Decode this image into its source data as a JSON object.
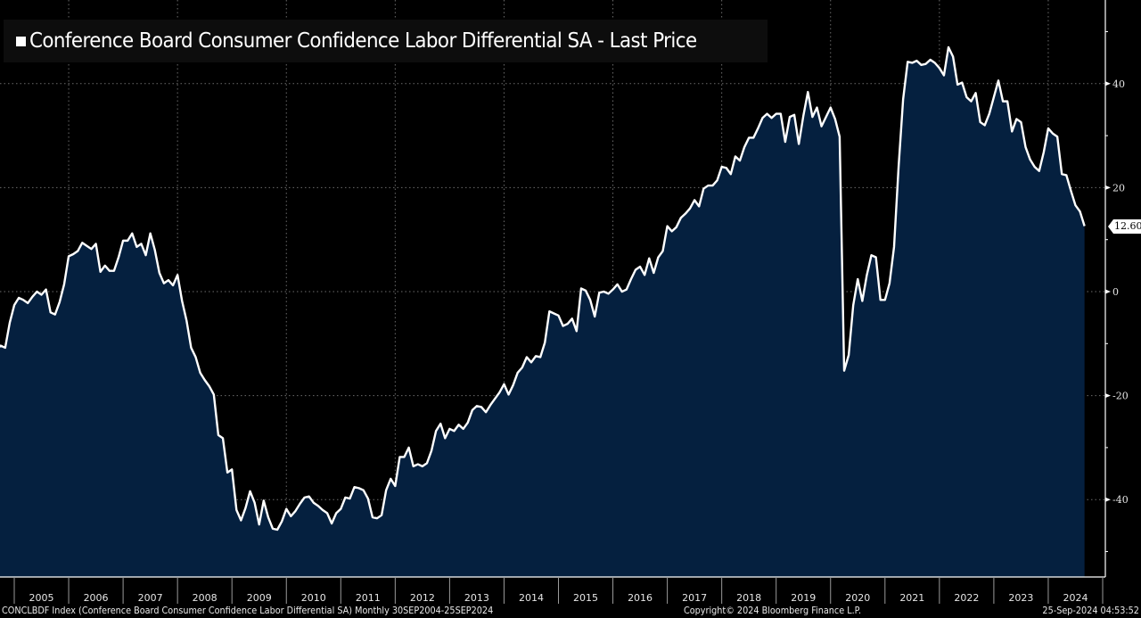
{
  "chart_data": {
    "type": "area",
    "title": "Conference Board Consumer Confidence Labor Differential SA - Last Price",
    "xlabel": "",
    "ylabel": "",
    "frequency": "Monthly",
    "x_start": "2004-09",
    "x_end": "2024-09",
    "ylim": [
      -50,
      50
    ],
    "y_ticks": [
      40,
      20,
      0,
      -20,
      -40
    ],
    "y_tick_labels": [
      "40",
      "20",
      "0",
      "-20",
      "-40"
    ],
    "x_tick_labels": [
      "2005",
      "2006",
      "2007",
      "2008",
      "2009",
      "2010",
      "2011",
      "2012",
      "2013",
      "2014",
      "2015",
      "2016",
      "2017",
      "2018",
      "2019",
      "2020",
      "2021",
      "2022",
      "2023",
      "2024"
    ],
    "grid": true,
    "legend_position": "top-left",
    "last_value_label": "12.60",
    "colors": {
      "line": "#ffffff",
      "fill": "#05203f",
      "background": "#000000",
      "grid": "#6b6b6b"
    },
    "series": [
      {
        "name": "Conference Board Consumer Confidence Labor Differential SA",
        "values": [
          -11.2,
          -10.4,
          -10.8,
          -6.0,
          -2.6,
          -1.2,
          -1.6,
          -2.2,
          -1.0,
          0.0,
          -0.6,
          0.4,
          -4.0,
          -4.4,
          -2.0,
          1.4,
          6.8,
          7.2,
          7.8,
          9.4,
          8.8,
          8.2,
          9.2,
          3.8,
          5.0,
          4.0,
          4.0,
          6.6,
          9.8,
          9.8,
          11.2,
          8.6,
          9.2,
          7.0,
          11.2,
          8.0,
          3.6,
          1.6,
          2.2,
          1.2,
          3.2,
          -1.8,
          -5.6,
          -10.8,
          -12.6,
          -15.6,
          -17.0,
          -18.2,
          -19.8,
          -27.6,
          -28.2,
          -34.8,
          -34.2,
          -42.0,
          -44.0,
          -41.6,
          -38.4,
          -40.6,
          -44.8,
          -40.2,
          -43.4,
          -45.6,
          -45.8,
          -44.2,
          -41.8,
          -43.2,
          -42.2,
          -40.8,
          -39.6,
          -39.4,
          -40.6,
          -41.2,
          -42.0,
          -42.6,
          -44.6,
          -42.6,
          -41.8,
          -39.6,
          -39.8,
          -37.6,
          -37.8,
          -38.2,
          -39.8,
          -43.4,
          -43.6,
          -43.0,
          -38.2,
          -36.0,
          -37.4,
          -31.8,
          -31.8,
          -30.0,
          -33.6,
          -33.2,
          -33.6,
          -33.0,
          -30.6,
          -26.8,
          -25.4,
          -28.2,
          -26.4,
          -26.8,
          -25.6,
          -26.4,
          -25.2,
          -22.8,
          -22.0,
          -22.2,
          -23.2,
          -21.8,
          -20.6,
          -19.4,
          -17.8,
          -19.8,
          -18.0,
          -15.6,
          -14.6,
          -12.6,
          -13.6,
          -12.4,
          -12.6,
          -9.8,
          -3.8,
          -4.2,
          -4.6,
          -6.6,
          -6.2,
          -5.2,
          -7.6,
          0.6,
          0.2,
          -1.6,
          -4.8,
          -0.2,
          0.0,
          -0.4,
          0.4,
          1.4,
          0.0,
          0.4,
          2.4,
          4.2,
          4.8,
          3.2,
          6.4,
          3.6,
          6.6,
          7.8,
          12.6,
          11.6,
          12.4,
          14.2,
          15.0,
          16.0,
          17.6,
          16.4,
          19.8,
          20.4,
          20.4,
          21.4,
          24.0,
          23.8,
          22.6,
          26.0,
          25.2,
          27.8,
          29.6,
          29.6,
          31.4,
          33.4,
          34.2,
          33.4,
          34.2,
          34.2,
          28.8,
          33.6,
          34.0,
          28.4,
          33.8,
          38.4,
          33.6,
          35.4,
          31.8,
          33.6,
          35.4,
          33.2,
          29.8,
          -15.2,
          -12.2,
          -2.6,
          2.4,
          -1.8,
          3.2,
          7.0,
          6.6,
          -1.6,
          -1.6,
          1.6,
          8.6,
          24.0,
          37.0,
          44.2,
          44.0,
          44.4,
          43.6,
          43.8,
          44.6,
          44.0,
          43.0,
          41.6,
          47.0,
          45.2,
          39.8,
          40.2,
          37.4,
          36.6,
          38.2,
          32.6,
          32.0,
          34.2,
          37.4,
          40.6,
          36.6,
          36.6,
          30.8,
          33.2,
          32.6,
          27.8,
          25.4,
          24.0,
          23.2,
          26.8,
          31.4,
          30.4,
          29.8,
          22.6,
          22.4,
          19.4,
          16.6,
          15.4,
          12.6
        ]
      }
    ]
  },
  "footer": {
    "left": "CONCLBDF Index (Conference Board Consumer Confidence Labor Differential SA)  Monthly 30SEP2004-25SEP2024",
    "center": "Copyright© 2024 Bloomberg Finance L.P.",
    "right": "25-Sep-2024 04:53:52"
  }
}
